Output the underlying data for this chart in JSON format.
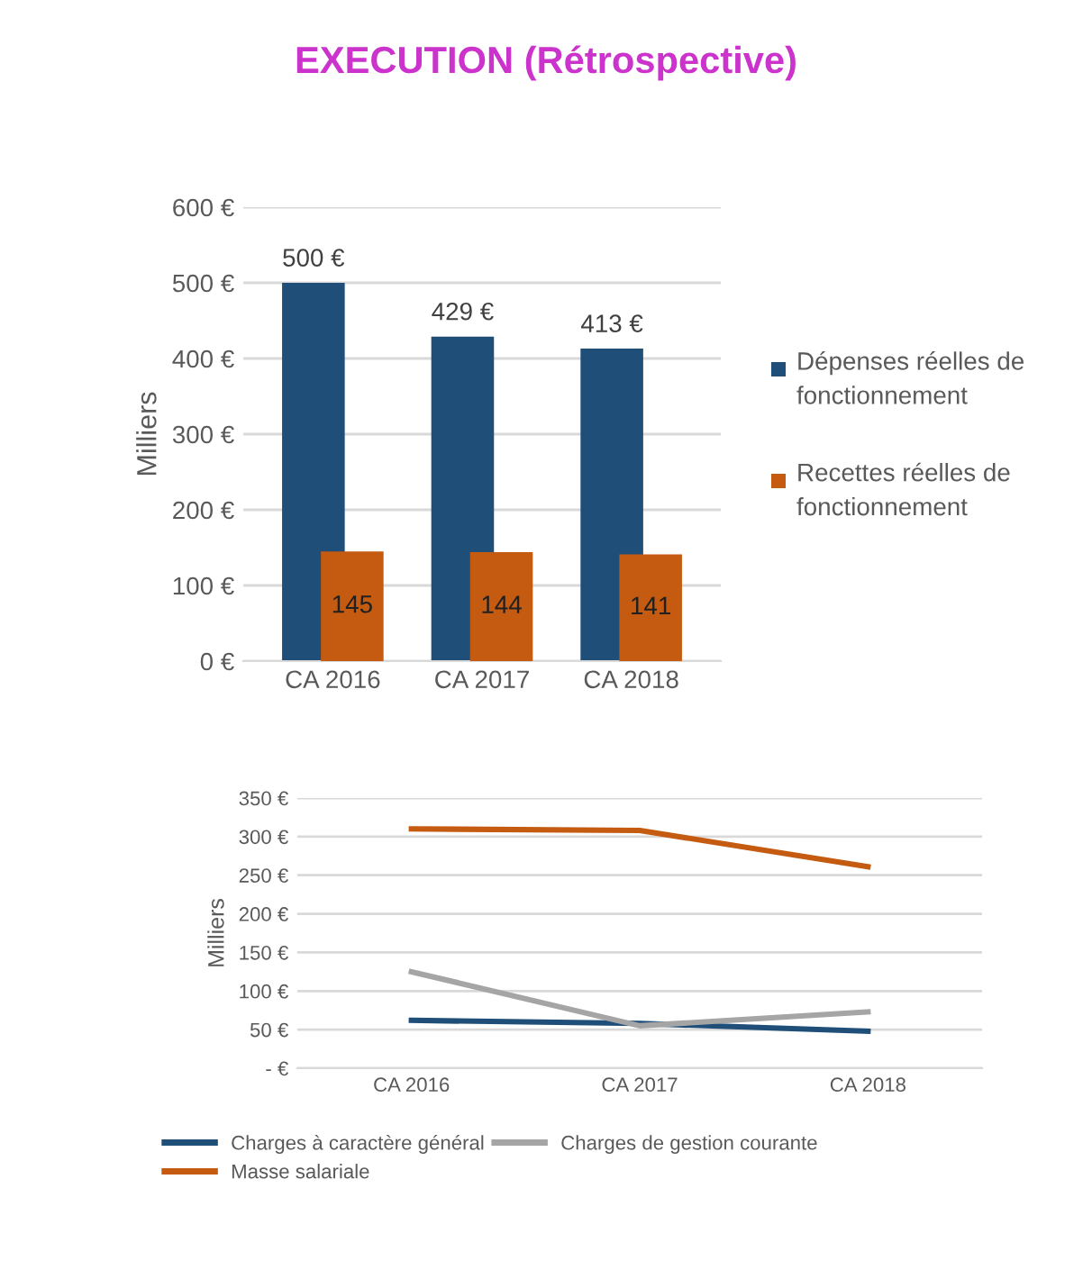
{
  "chart_data": [
    {
      "type": "bar",
      "title": "EXECUTION (Rétrospective)",
      "ylabel": "Milliers",
      "categories": [
        "CA 2016",
        "CA 2017",
        "CA 2018"
      ],
      "series": [
        {
          "name": "Dépenses réelles de fonctionnement",
          "color": "#1f4e79",
          "values": [
            500,
            429,
            413
          ],
          "value_labels": [
            "500 €",
            "429 €",
            "413 €"
          ]
        },
        {
          "name": "Recettes réelles de fonctionnement",
          "color": "#c55a11",
          "values": [
            145,
            144,
            141
          ],
          "value_labels": [
            "145",
            "144",
            "141"
          ]
        }
      ],
      "ylim": [
        0,
        600
      ],
      "yticks": [
        {
          "value": 0,
          "label": "0 €"
        },
        {
          "value": 100,
          "label": "100 €"
        },
        {
          "value": 200,
          "label": "200 €"
        },
        {
          "value": 300,
          "label": "300 €"
        },
        {
          "value": 400,
          "label": "400 €"
        },
        {
          "value": 500,
          "label": "500 €"
        },
        {
          "value": 600,
          "label": "600 €"
        }
      ],
      "grid": "y",
      "legend": "right"
    },
    {
      "type": "line",
      "ylabel": "Milliers",
      "categories": [
        "CA 2016",
        "CA 2017",
        "CA 2018"
      ],
      "series": [
        {
          "name": "Charges à caractère général",
          "color": "#1f4e79",
          "values": [
            62,
            58,
            48
          ]
        },
        {
          "name": "Masse salariale",
          "color": "#c55a11",
          "values": [
            310,
            308,
            261
          ]
        },
        {
          "name": "Charges de gestion courante",
          "color": "#a5a5a5",
          "values": [
            125,
            55,
            73
          ]
        }
      ],
      "ylim": [
        0,
        350
      ],
      "yticks": [
        {
          "value": 0,
          "label": "- €"
        },
        {
          "value": 50,
          "label": "50 €"
        },
        {
          "value": 100,
          "label": "100 €"
        },
        {
          "value": 150,
          "label": "150 €"
        },
        {
          "value": 200,
          "label": "200 €"
        },
        {
          "value": 250,
          "label": "250 €"
        },
        {
          "value": 300,
          "label": "300 €"
        },
        {
          "value": 350,
          "label": "350 €"
        }
      ],
      "grid": "y",
      "legend": "bottom",
      "marker": "none",
      "line_style": "solid"
    }
  ]
}
